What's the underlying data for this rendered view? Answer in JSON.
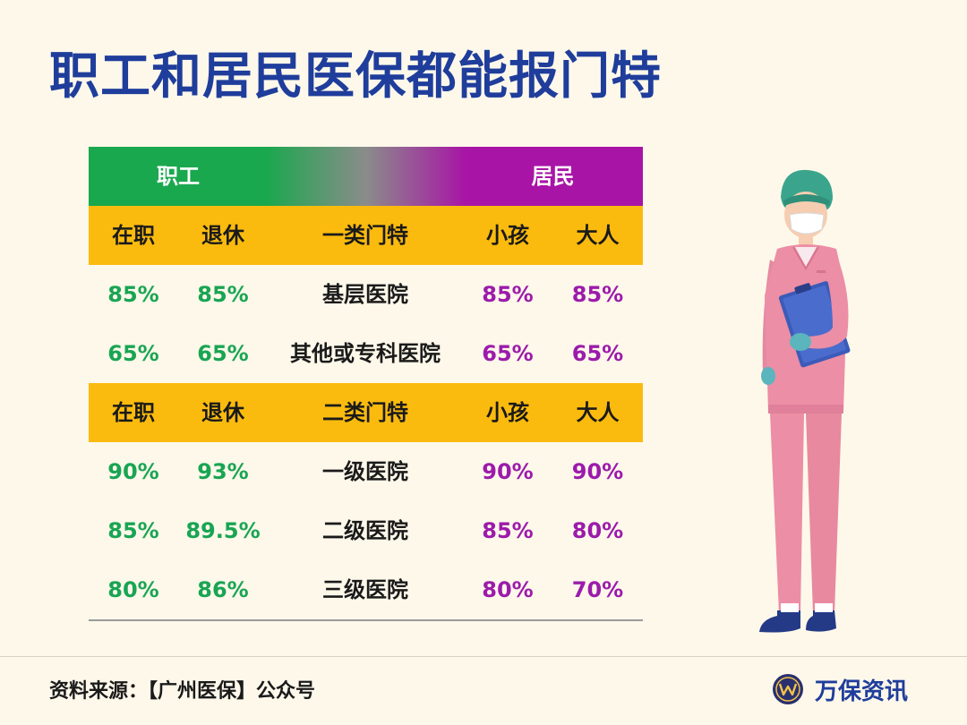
{
  "title": "职工和居民医保都能报门特",
  "table": {
    "group_left": "职工",
    "group_right": "居民",
    "sections": [
      {
        "header": [
          "在职",
          "退休",
          "一类门特",
          "小孩",
          "大人"
        ],
        "rows": [
          [
            "85%",
            "85%",
            "基层医院",
            "85%",
            "85%"
          ],
          [
            "65%",
            "65%",
            "其他或专科医院",
            "65%",
            "65%"
          ]
        ]
      },
      {
        "header": [
          "在职",
          "退休",
          "二类门特",
          "小孩",
          "大人"
        ],
        "rows": [
          [
            "90%",
            "93%",
            "一级医院",
            "90%",
            "90%"
          ],
          [
            "85%",
            "89.5%",
            "二级医院",
            "85%",
            "80%"
          ],
          [
            "80%",
            "86%",
            "三级医院",
            "80%",
            "70%"
          ]
        ]
      }
    ]
  },
  "footer": {
    "source": "资料来源：【广州医保】公众号",
    "brand": "万保资讯",
    "brand_icon": "w-logo-icon"
  },
  "colors": {
    "title": "#1f3d9b",
    "employee_green": "#19a553",
    "resident_purple": "#9c1bab",
    "subheader_yellow": "#fbbb0e",
    "background": "#fdf8ea"
  },
  "illustration": "nurse-illustration"
}
